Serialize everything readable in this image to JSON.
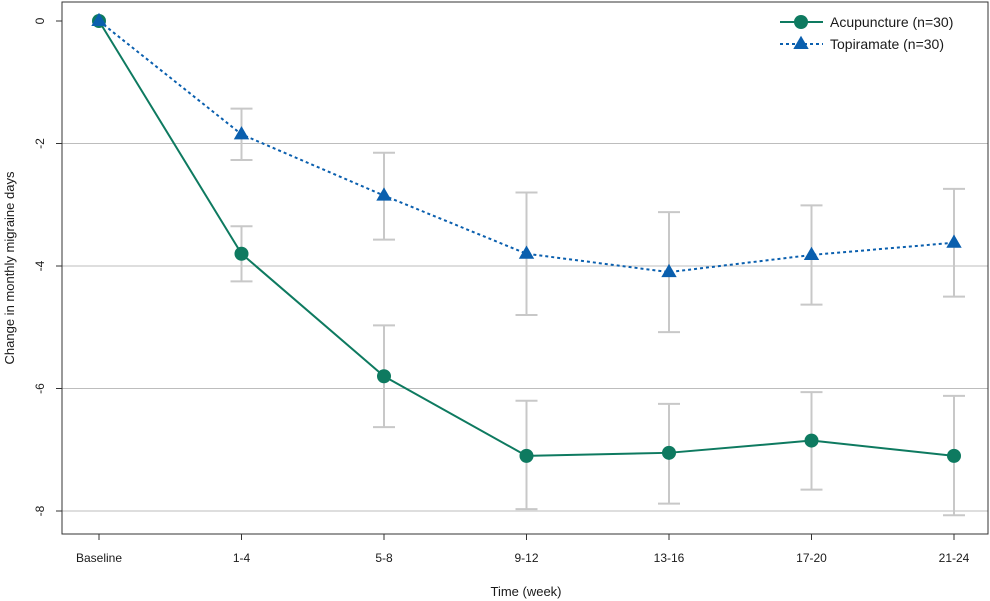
{
  "chart_data": {
    "type": "line",
    "categories": [
      "Baseline",
      "1-4",
      "5-8",
      "9-12",
      "13-16",
      "17-20",
      "21-24"
    ],
    "xlabel": "Time (week)",
    "ylabel": "Change in monthly migraine days",
    "ylim": [
      -8.2,
      0.2
    ],
    "yticks": [
      0,
      -2,
      -4,
      -6,
      -8
    ],
    "grid": "horizontal",
    "legend_position": "top-right",
    "series": [
      {
        "name": "Acupuncture (n=30)",
        "values": [
          0,
          -3.8,
          -5.8,
          -7.1,
          -7.05,
          -6.85,
          -7.1
        ],
        "error_low": [
          0,
          -4.25,
          -6.63,
          -7.97,
          -7.88,
          -7.65,
          -8.07
        ],
        "error_high": [
          0,
          -3.35,
          -4.97,
          -6.2,
          -6.25,
          -6.06,
          -6.12
        ],
        "color": "#0e7a60",
        "line_style": "solid",
        "marker": "circle"
      },
      {
        "name": "Topiramate (n=30)",
        "values": [
          0,
          -1.85,
          -2.85,
          -3.8,
          -4.1,
          -3.82,
          -3.62
        ],
        "error_low": [
          0,
          -2.27,
          -3.57,
          -4.8,
          -5.08,
          -4.63,
          -4.5
        ],
        "error_high": [
          0,
          -1.43,
          -2.15,
          -2.8,
          -3.12,
          -3.01,
          -2.74
        ],
        "color": "#0a5fae",
        "line_style": "dotted",
        "marker": "triangle"
      }
    ],
    "error_bar_color": "#c8c8c8"
  }
}
